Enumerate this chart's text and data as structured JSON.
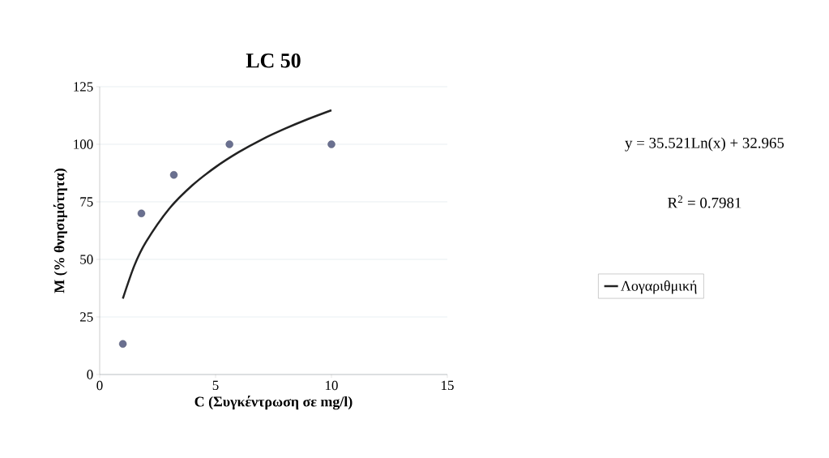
{
  "chart_data": {
    "type": "scatter",
    "title": "LC 50",
    "xlabel": "C (Συγκέντρωση σε mg/l)",
    "ylabel": "M (% θνησιμότητα)",
    "xlim": [
      0,
      15
    ],
    "xticks": [
      0,
      5,
      10,
      15
    ],
    "ylim": [
      0,
      125
    ],
    "yticks": [
      0,
      25,
      50,
      75,
      100,
      125
    ],
    "grid": "y",
    "marker": "circle",
    "legend": "right",
    "annotations": [
      "y = 35.521Ln(x) + 32.965",
      "R$^{2}$ = 0.7981"
    ],
    "series": [
      {
        "color": "#6a7090",
        "x": [
          1,
          1.8,
          3.2,
          5.6,
          10
        ],
        "values": [
          13.3,
          70,
          86.7,
          100,
          100
        ]
      },
      {
        "type": "line",
        "name": "Λογαριθμική",
        "color": "#222222",
        "marker": "none",
        "x": [
          1,
          1.5,
          2,
          3,
          4,
          5,
          6,
          7,
          8,
          9,
          10
        ],
        "values": [
          33,
          47.4,
          57.6,
          72,
          82.2,
          90.1,
          96.6,
          102.1,
          106.8,
          111,
          114.8
        ]
      }
    ]
  }
}
